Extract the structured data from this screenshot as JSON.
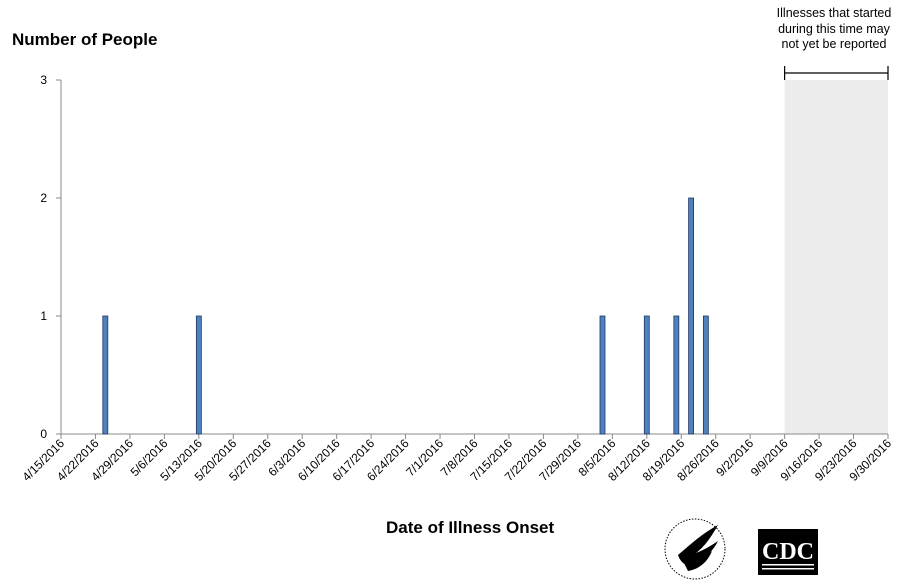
{
  "chart_data": {
    "type": "bar",
    "ylabel": "Number of People",
    "xlabel": "Date of Illness Onset",
    "ylim": [
      0,
      3
    ],
    "yticks": [
      "0",
      "1",
      "2",
      "3"
    ],
    "x_range": [
      "4/15/2016",
      "9/30/2016"
    ],
    "xticks": [
      "4/15/2016",
      "4/22/2016",
      "4/29/2016",
      "5/6/2016",
      "5/13/2016",
      "5/20/2016",
      "5/27/2016",
      "6/3/2016",
      "6/10/2016",
      "6/17/2016",
      "6/24/2016",
      "7/1/2016",
      "7/8/2016",
      "7/15/2016",
      "7/22/2016",
      "7/29/2016",
      "8/5/2016",
      "8/12/2016",
      "8/19/2016",
      "8/26/2016",
      "9/2/2016",
      "9/9/2016",
      "9/16/2016",
      "9/23/2016",
      "9/30/2016"
    ],
    "bars": [
      {
        "date": "4/24/2016",
        "value": 1
      },
      {
        "date": "5/13/2016",
        "value": 1
      },
      {
        "date": "8/3/2016",
        "value": 1
      },
      {
        "date": "8/12/2016",
        "value": 1
      },
      {
        "date": "8/18/2016",
        "value": 1
      },
      {
        "date": "8/21/2016",
        "value": 2
      },
      {
        "date": "8/24/2016",
        "value": 1
      }
    ],
    "reporting_lag": {
      "start": "9/9/2016",
      "end": "9/30/2016",
      "label": "Illnesses that started during this time may not yet be reported"
    },
    "bar_color": "#4f81bd",
    "bar_border_color": "#1f3864",
    "shade_color": "#ececec"
  }
}
